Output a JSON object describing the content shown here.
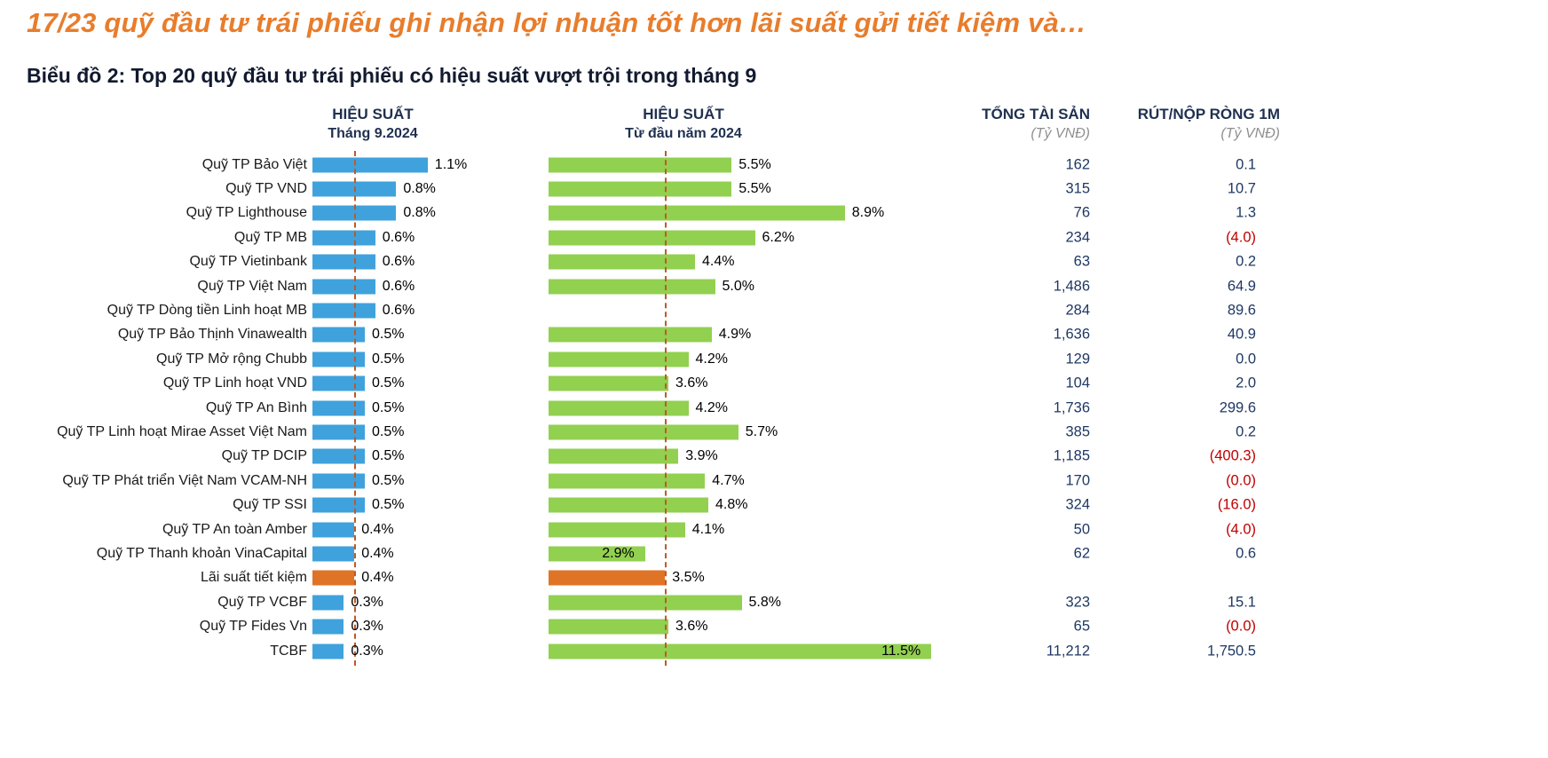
{
  "title": "17/23 quỹ đầu tư trái phiếu ghi nhận lợi nhuận tốt hơn lãi suất gửi tiết kiệm và…",
  "subtitle": "Biểu đồ 2: Top 20 quỹ đầu tư trái phiếu có hiệu suất vượt trội trong tháng 9",
  "headers": {
    "month_title": "HIỆU SUẤT",
    "month_sub": "Tháng 9.2024",
    "ytd_title": "HIỆU SUẤT",
    "ytd_sub": "Từ đầu năm 2024",
    "assets_title": "TỔNG TÀI SẢN",
    "assets_sub": "(Tỷ VNĐ)",
    "flow_title": "RÚT/NỘP RÒNG 1M",
    "flow_sub": "(Tỷ VNĐ)"
  },
  "colors": {
    "blue_bar": "#3FA2DC",
    "green_bar": "#92D050",
    "orange_bar": "#DF7426",
    "dashed_line": "#BE5A28",
    "value_navy": "#1F3864",
    "negative_red": "#C00000",
    "title_orange": "#E87D2C"
  },
  "chart_data": {
    "type": "bar",
    "orientation": "horizontal",
    "title": "Biểu đồ 2: Top 20 quỹ đầu tư trái phiếu có hiệu suất vượt trội trong tháng 9",
    "series": [
      {
        "name": "Hiệu suất Tháng 9.2024 (%)",
        "color": "#3FA2DC"
      },
      {
        "name": "Hiệu suất từ đầu năm 2024 (%)",
        "color": "#92D050"
      }
    ],
    "reference_lines": {
      "month_pct": 0.4,
      "ytd_pct": 3.5,
      "style": "dashed"
    },
    "month_axis_max": 1.2,
    "ytd_axis_max": 11.5,
    "rows": [
      {
        "name": "Quỹ TP Bảo Việt",
        "month": 1.1,
        "month_label": "1.1%",
        "ytd": 5.5,
        "ytd_label": "5.5%",
        "ytd_label_inside": false,
        "assets": "162",
        "flow": "0.1",
        "flow_negative": false,
        "highlight": false
      },
      {
        "name": "Quỹ TP VND",
        "month": 0.8,
        "month_label": "0.8%",
        "ytd": 5.5,
        "ytd_label": "5.5%",
        "ytd_label_inside": false,
        "assets": "315",
        "flow": "10.7",
        "flow_negative": false,
        "highlight": false
      },
      {
        "name": "Quỹ TP Lighthouse",
        "month": 0.8,
        "month_label": "0.8%",
        "ytd": 8.9,
        "ytd_label": "8.9%",
        "ytd_label_inside": false,
        "assets": "76",
        "flow": "1.3",
        "flow_negative": false,
        "highlight": false
      },
      {
        "name": "Quỹ TP MB",
        "month": 0.6,
        "month_label": "0.6%",
        "ytd": 6.2,
        "ytd_label": "6.2%",
        "ytd_label_inside": false,
        "assets": "234",
        "flow": "(4.0)",
        "flow_negative": true,
        "highlight": false
      },
      {
        "name": "Quỹ TP Vietinbank",
        "month": 0.6,
        "month_label": "0.6%",
        "ytd": 4.4,
        "ytd_label": "4.4%",
        "ytd_label_inside": false,
        "assets": "63",
        "flow": "0.2",
        "flow_negative": false,
        "highlight": false
      },
      {
        "name": "Quỹ TP Việt Nam",
        "month": 0.6,
        "month_label": "0.6%",
        "ytd": 5.0,
        "ytd_label": "5.0%",
        "ytd_label_inside": false,
        "assets": "1,486",
        "flow": "64.9",
        "flow_negative": false,
        "highlight": false
      },
      {
        "name": "Quỹ TP Dòng tiền Linh hoạt MB",
        "month": 0.6,
        "month_label": "0.6%",
        "ytd": null,
        "ytd_label": null,
        "ytd_label_inside": false,
        "assets": "284",
        "flow": "89.6",
        "flow_negative": false,
        "highlight": false
      },
      {
        "name": "Quỹ TP Bảo Thịnh Vinawealth",
        "month": 0.5,
        "month_label": "0.5%",
        "ytd": 4.9,
        "ytd_label": "4.9%",
        "ytd_label_inside": false,
        "assets": "1,636",
        "flow": "40.9",
        "flow_negative": false,
        "highlight": false
      },
      {
        "name": "Quỹ TP Mở rộng Chubb",
        "month": 0.5,
        "month_label": "0.5%",
        "ytd": 4.2,
        "ytd_label": "4.2%",
        "ytd_label_inside": false,
        "assets": "129",
        "flow": "0.0",
        "flow_negative": false,
        "highlight": false
      },
      {
        "name": "Quỹ TP Linh hoạt VND",
        "month": 0.5,
        "month_label": "0.5%",
        "ytd": 3.6,
        "ytd_label": "3.6%",
        "ytd_label_inside": false,
        "assets": "104",
        "flow": "2.0",
        "flow_negative": false,
        "highlight": false
      },
      {
        "name": "Quỹ TP An Bình",
        "month": 0.5,
        "month_label": "0.5%",
        "ytd": 4.2,
        "ytd_label": "4.2%",
        "ytd_label_inside": false,
        "assets": "1,736",
        "flow": "299.6",
        "flow_negative": false,
        "highlight": false
      },
      {
        "name": "Quỹ TP Linh hoạt Mirae Asset Việt Nam",
        "month": 0.5,
        "month_label": "0.5%",
        "ytd": 5.7,
        "ytd_label": "5.7%",
        "ytd_label_inside": false,
        "assets": "385",
        "flow": "0.2",
        "flow_negative": false,
        "highlight": false
      },
      {
        "name": "Quỹ TP DCIP",
        "month": 0.5,
        "month_label": "0.5%",
        "ytd": 3.9,
        "ytd_label": "3.9%",
        "ytd_label_inside": false,
        "assets": "1,185",
        "flow": "(400.3)",
        "flow_negative": true,
        "highlight": false
      },
      {
        "name": "Quỹ TP Phát triển Việt Nam VCAM-NH",
        "month": 0.5,
        "month_label": "0.5%",
        "ytd": 4.7,
        "ytd_label": "4.7%",
        "ytd_label_inside": false,
        "assets": "170",
        "flow": "(0.0)",
        "flow_negative": true,
        "highlight": false
      },
      {
        "name": "Quỹ TP SSI",
        "month": 0.5,
        "month_label": "0.5%",
        "ytd": 4.8,
        "ytd_label": "4.8%",
        "ytd_label_inside": false,
        "assets": "324",
        "flow": "(16.0)",
        "flow_negative": true,
        "highlight": false
      },
      {
        "name": "Quỹ TP An toàn Amber",
        "month": 0.4,
        "month_label": "0.4%",
        "ytd": 4.1,
        "ytd_label": "4.1%",
        "ytd_label_inside": false,
        "assets": "50",
        "flow": "(4.0)",
        "flow_negative": true,
        "highlight": false
      },
      {
        "name": "Quỹ TP Thanh khoản VinaCapital",
        "month": 0.4,
        "month_label": "0.4%",
        "ytd": 2.9,
        "ytd_label": "2.9%",
        "ytd_label_inside": true,
        "assets": "62",
        "flow": "0.6",
        "flow_negative": false,
        "highlight": false
      },
      {
        "name": "Lãi suất tiết kiệm",
        "month": 0.4,
        "month_label": "0.4%",
        "ytd": 3.5,
        "ytd_label": "3.5%",
        "ytd_label_inside": false,
        "assets": null,
        "flow": null,
        "flow_negative": false,
        "highlight": true
      },
      {
        "name": "Quỹ TP VCBF",
        "month": 0.3,
        "month_label": "0.3%",
        "ytd": 5.8,
        "ytd_label": "5.8%",
        "ytd_label_inside": false,
        "assets": "323",
        "flow": "15.1",
        "flow_negative": false,
        "highlight": false
      },
      {
        "name": "Quỹ TP Fides Vn",
        "month": 0.3,
        "month_label": "0.3%",
        "ytd": 3.6,
        "ytd_label": "3.6%",
        "ytd_label_inside": false,
        "assets": "65",
        "flow": "(0.0)",
        "flow_negative": true,
        "highlight": false
      },
      {
        "name": "TCBF",
        "month": 0.3,
        "month_label": "0.3%",
        "ytd": 11.5,
        "ytd_label": "11.5%",
        "ytd_label_inside": true,
        "assets": "11,212",
        "flow": "1,750.5",
        "flow_negative": false,
        "highlight": false
      }
    ]
  }
}
